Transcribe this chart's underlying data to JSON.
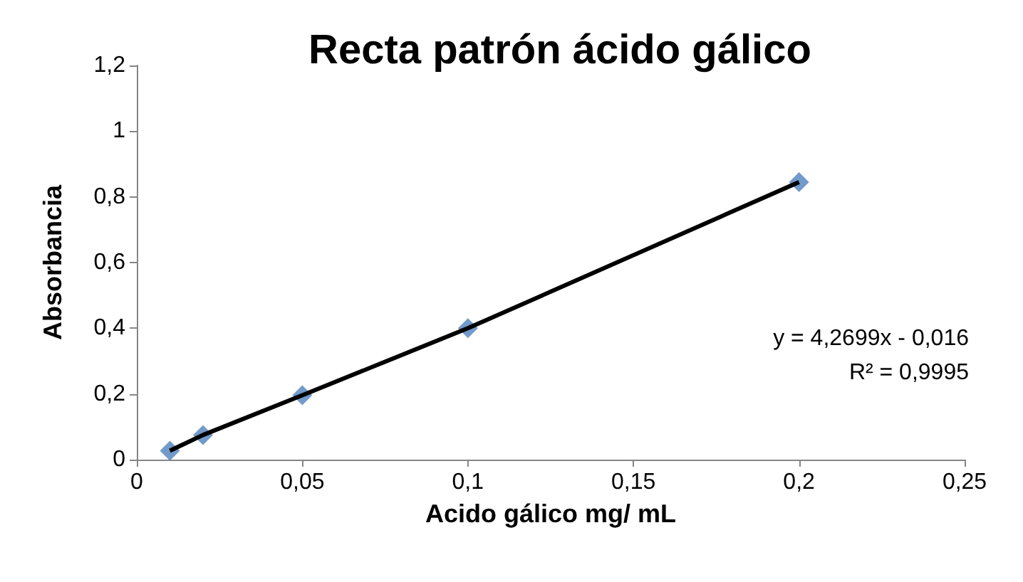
{
  "chart_data": {
    "type": "scatter",
    "title": "Recta patrón ácido gálico",
    "xlabel": "Acido gálico mg/ mL",
    "ylabel": "Absorbancia",
    "x": [
      0.01,
      0.02,
      0.05,
      0.1,
      0.2
    ],
    "series": [
      {
        "type": "line",
        "color": "#000000",
        "values": [
          0.027,
          0.075,
          0.196,
          0.4,
          0.845
        ],
        "marker": "none"
      },
      {
        "color": "#4f81bd",
        "values": [
          0.027,
          0.075,
          0.196,
          0.4,
          0.845
        ],
        "marker": "diamond"
      }
    ],
    "annotations": [
      "y = 4,2699x - 0,016",
      "R² = 0,9995"
    ],
    "xlim": [
      0,
      0.25
    ],
    "xticks": [
      {
        "value": 0,
        "label": "0"
      },
      {
        "value": 0.05,
        "label": "0,05"
      },
      {
        "value": 0.1,
        "label": "0,1"
      },
      {
        "value": 0.15,
        "label": "0,15"
      },
      {
        "value": 0.2,
        "label": "0,2"
      },
      {
        "value": 0.25,
        "label": "0,25"
      }
    ],
    "ylim": [
      0,
      1.2
    ],
    "yticks": [
      {
        "value": 0,
        "label": "0"
      },
      {
        "value": 0.2,
        "label": "0,2"
      },
      {
        "value": 0.4,
        "label": "0,4"
      },
      {
        "value": 0.6,
        "label": "0,6"
      },
      {
        "value": 0.8,
        "label": "0,8"
      },
      {
        "value": 1,
        "label": "1"
      },
      {
        "value": 1.2,
        "label": "1,2"
      }
    ],
    "grid": false
  }
}
